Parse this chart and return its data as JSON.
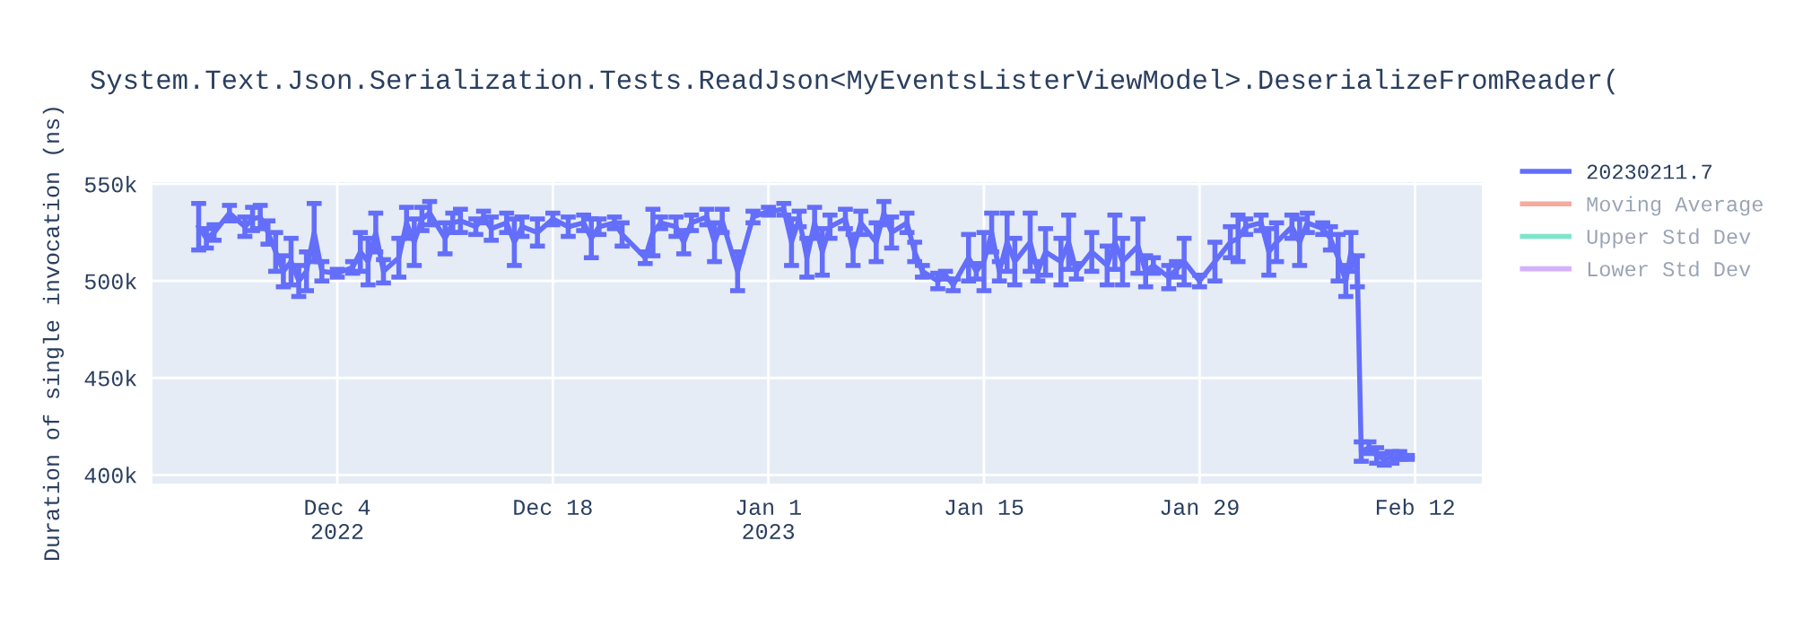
{
  "chart_data": {
    "type": "line",
    "title": "System.Text.Json.Serialization.Tests.ReadJson<MyEventsListerViewModel>.DeserializeFromReader(",
    "ylabel": "Duration of single invocation (ns)",
    "x": [
      "2022-11-25",
      "2022-11-25T12:00",
      "2022-11-26",
      "2022-11-27",
      "2022-11-28",
      "2022-11-28T12:00",
      "2022-11-29",
      "2022-11-29T12:00",
      "2022-11-30",
      "2022-11-30T12:00",
      "2022-12-01",
      "2022-12-01T12:00",
      "2022-12-02",
      "2022-12-02T12:00",
      "2022-12-03",
      "2022-12-04",
      "2022-12-05",
      "2022-12-05T12:00",
      "2022-12-06",
      "2022-12-06T12:00",
      "2022-12-07",
      "2022-12-08",
      "2022-12-08T12:00",
      "2022-12-09",
      "2022-12-09T12:00",
      "2022-12-10",
      "2022-12-11",
      "2022-12-11T12:00",
      "2022-12-12",
      "2022-12-13",
      "2022-12-13T12:00",
      "2022-12-14",
      "2022-12-15",
      "2022-12-15T12:00",
      "2022-12-16",
      "2022-12-17",
      "2022-12-18",
      "2022-12-19",
      "2022-12-20",
      "2022-12-20T12:00",
      "2022-12-21",
      "2022-12-22",
      "2022-12-22T12:00",
      "2022-12-24",
      "2022-12-24T12:00",
      "2022-12-25",
      "2022-12-26",
      "2022-12-26T12:00",
      "2022-12-27",
      "2022-12-28",
      "2022-12-28T12:00",
      "2022-12-29",
      "2022-12-30",
      "2022-12-31",
      "2023-01-01",
      "2023-01-02",
      "2023-01-02T12:00",
      "2023-01-03",
      "2023-01-03T12:00",
      "2023-01-04",
      "2023-01-04T12:00",
      "2023-01-05",
      "2023-01-06",
      "2023-01-06T12:00",
      "2023-01-07",
      "2023-01-08",
      "2023-01-08T12:00",
      "2023-01-09",
      "2023-01-10",
      "2023-01-10T12:00",
      "2023-01-11",
      "2023-01-12",
      "2023-01-12T12:00",
      "2023-01-13",
      "2023-01-14",
      "2023-01-14T12:00",
      "2023-01-15",
      "2023-01-15T12:00",
      "2023-01-16",
      "2023-01-16T12:00",
      "2023-01-17",
      "2023-01-18",
      "2023-01-18T12:00",
      "2023-01-19",
      "2023-01-20",
      "2023-01-20T12:00",
      "2023-01-21",
      "2023-01-22",
      "2023-01-23",
      "2023-01-23T12:00",
      "2023-01-24",
      "2023-01-25",
      "2023-01-25T12:00",
      "2023-01-26",
      "2023-01-27",
      "2023-01-27T12:00",
      "2023-01-28",
      "2023-01-29",
      "2023-01-30",
      "2023-01-31",
      "2023-01-31T12:00",
      "2023-02-01",
      "2023-02-02",
      "2023-02-02T12:00",
      "2023-02-03",
      "2023-02-04",
      "2023-02-04T12:00",
      "2023-02-05",
      "2023-02-06",
      "2023-02-06T12:00",
      "2023-02-07",
      "2023-02-07T12:00",
      "2023-02-07T20:00",
      "2023-02-08T06:00",
      "2023-02-08T12:00",
      "2023-02-09",
      "2023-02-09T12:00",
      "2023-02-10",
      "2023-02-10T12:00",
      "2023-02-11",
      "2023-02-11T12:00"
    ],
    "series": [
      {
        "name": "20230211.7",
        "color": "#636efa",
        "values": [
          528000,
          522000,
          525000,
          535000,
          528000,
          532000,
          533000,
          525000,
          515000,
          505000,
          510000,
          500000,
          505000,
          525000,
          505000,
          504000,
          507000,
          515000,
          510000,
          525000,
          505000,
          512000,
          530000,
          520000,
          532000,
          535000,
          522000,
          530000,
          531000,
          528000,
          533000,
          527000,
          530000,
          520000,
          528000,
          525000,
          532000,
          528000,
          530000,
          522000,
          528000,
          530000,
          524000,
          512000,
          525000,
          530000,
          528000,
          520000,
          530000,
          533000,
          520000,
          531000,
          505000,
          533000,
          536000,
          537000,
          520000,
          532000,
          512000,
          530000,
          515000,
          528000,
          532000,
          516000,
          530000,
          520000,
          535000,
          525000,
          530000,
          515000,
          505000,
          500000,
          503000,
          498000,
          512000,
          505000,
          510000,
          525000,
          505000,
          520000,
          510000,
          520000,
          505000,
          515000,
          510000,
          520000,
          505000,
          515000,
          508000,
          520000,
          510000,
          518000,
          505000,
          508000,
          502000,
          506000,
          510000,
          500000,
          510000,
          520000,
          522000,
          528000,
          530000,
          515000,
          520000,
          528000,
          520000,
          530000,
          527000,
          522000,
          512000,
          500000,
          515000,
          505000,
          412000,
          414000,
          410000,
          408000,
          409000,
          410000,
          409000
        ],
        "errors": [
          12000,
          5000,
          4000,
          4000,
          5000,
          6000,
          6000,
          6000,
          10000,
          8000,
          12000,
          8000,
          10000,
          15000,
          5000,
          2000,
          3000,
          10000,
          12000,
          10000,
          6000,
          10000,
          8000,
          12000,
          6000,
          6000,
          8000,
          5000,
          6000,
          4000,
          3000,
          6000,
          5000,
          12000,
          5000,
          7000,
          3000,
          5000,
          4000,
          10000,
          4000,
          3000,
          6000,
          3000,
          12000,
          3000,
          5000,
          6000,
          4000,
          4000,
          10000,
          6000,
          10000,
          3000,
          2000,
          3000,
          12000,
          4000,
          10000,
          8000,
          12000,
          6000,
          5000,
          8000,
          6000,
          10000,
          6000,
          8000,
          5000,
          5000,
          3000,
          4000,
          2000,
          3000,
          12000,
          4000,
          15000,
          10000,
          5000,
          15000,
          12000,
          15000,
          5000,
          12000,
          12000,
          14000,
          4000,
          10000,
          10000,
          14000,
          12000,
          14000,
          8000,
          4000,
          6000,
          4000,
          12000,
          3000,
          10000,
          8000,
          12000,
          4000,
          4000,
          12000,
          10000,
          6000,
          12000,
          5000,
          3000,
          6000,
          12000,
          8000,
          10000,
          8000,
          5000,
          3000,
          4000,
          3000,
          3000,
          2000,
          1000
        ]
      },
      {
        "name": "Moving Average",
        "color": "#ef553b",
        "values": [
          null,
          null,
          null,
          null,
          null,
          null,
          null,
          null,
          null,
          null,
          null,
          null,
          null,
          null,
          null,
          null,
          null,
          null,
          null,
          null,
          null,
          null,
          null,
          null,
          null,
          null,
          null,
          null,
          null,
          null,
          null,
          null,
          null,
          null,
          null,
          null,
          null,
          null,
          null,
          null,
          null,
          null,
          null,
          null,
          null,
          null,
          null,
          null,
          null,
          null,
          null,
          null,
          null,
          null,
          null,
          null,
          null,
          null,
          null,
          null,
          null,
          null,
          null,
          null,
          null,
          null,
          null,
          null,
          null,
          null,
          null,
          null,
          null,
          null,
          null,
          null,
          null,
          null,
          null,
          null,
          null,
          null,
          null,
          null,
          null,
          null,
          null,
          null,
          null,
          null,
          null,
          null,
          null,
          null,
          null,
          null,
          null,
          null,
          null,
          null,
          null,
          null,
          null,
          null,
          null,
          null,
          null,
          null,
          null,
          null,
          null,
          null,
          null,
          null,
          null,
          null,
          null,
          null,
          null,
          null,
          null
        ]
      },
      {
        "name": "Upper Std Dev",
        "color": "#00cc96",
        "values": [
          null,
          null,
          null,
          null,
          null,
          null,
          null,
          null,
          null,
          null,
          null,
          null,
          null,
          null,
          null,
          null,
          null,
          null,
          null,
          null,
          null,
          null,
          null,
          null,
          null,
          null,
          null,
          null,
          null,
          null,
          null,
          null,
          null,
          null,
          null,
          null,
          null,
          null,
          null,
          null,
          null,
          null,
          null,
          null,
          null,
          null,
          null,
          null,
          null,
          null,
          null,
          null,
          null,
          null,
          null,
          null,
          null,
          null,
          null,
          null,
          null,
          null,
          null,
          null,
          null,
          null,
          null,
          null,
          null,
          null,
          null,
          null,
          null,
          null,
          null,
          null,
          null,
          null,
          null,
          null,
          null,
          null,
          null,
          null,
          null,
          null,
          null,
          null,
          null,
          null,
          null,
          null,
          null,
          null,
          null,
          null,
          null,
          null,
          null,
          null,
          null,
          null,
          null,
          null,
          null,
          null,
          null,
          null,
          null,
          null,
          null,
          null,
          null,
          null,
          null,
          null,
          null,
          null,
          null,
          null,
          null
        ]
      },
      {
        "name": "Lower Std Dev",
        "color": "#ab63fa",
        "values": [
          null,
          null,
          null,
          null,
          null,
          null,
          null,
          null,
          null,
          null,
          null,
          null,
          null,
          null,
          null,
          null,
          null,
          null,
          null,
          null,
          null,
          null,
          null,
          null,
          null,
          null,
          null,
          null,
          null,
          null,
          null,
          null,
          null,
          null,
          null,
          null,
          null,
          null,
          null,
          null,
          null,
          null,
          null,
          null,
          null,
          null,
          null,
          null,
          null,
          null,
          null,
          null,
          null,
          null,
          null,
          null,
          null,
          null,
          null,
          null,
          null,
          null,
          null,
          null,
          null,
          null,
          null,
          null,
          null,
          null,
          null,
          null,
          null,
          null,
          null,
          null,
          null,
          null,
          null,
          null,
          null,
          null,
          null,
          null,
          null,
          null,
          null,
          null,
          null,
          null,
          null,
          null,
          null,
          null,
          null,
          null,
          null,
          null,
          null,
          null,
          null,
          null,
          null,
          null,
          null,
          null,
          null,
          null,
          null,
          null,
          null,
          null,
          null,
          null,
          null,
          null,
          null,
          null,
          null,
          null,
          null
        ]
      }
    ],
    "xlim": [
      "2022-11-22",
      "2023-02-16T08:00"
    ],
    "xticks": [
      {
        "value": "2022-12-04",
        "label": "Dec 4\n2022"
      },
      {
        "value": "2022-12-18",
        "label": "Dec 18"
      },
      {
        "value": "2023-01-01",
        "label": "Jan 1\n2023"
      },
      {
        "value": "2023-01-15",
        "label": "Jan 15"
      },
      {
        "value": "2023-01-29",
        "label": "Jan 29"
      },
      {
        "value": "2023-02-12",
        "label": "Feb 12"
      }
    ],
    "ylim": [
      395500,
      551000
    ],
    "yticks": [
      {
        "value": 400000,
        "label": "400k"
      },
      {
        "value": 450000,
        "label": "450k"
      },
      {
        "value": 500000,
        "label": "500k"
      },
      {
        "value": 550000,
        "label": "550k"
      }
    ],
    "grid": true,
    "legend": "top right",
    "marker": "none",
    "line_style": "solid"
  }
}
